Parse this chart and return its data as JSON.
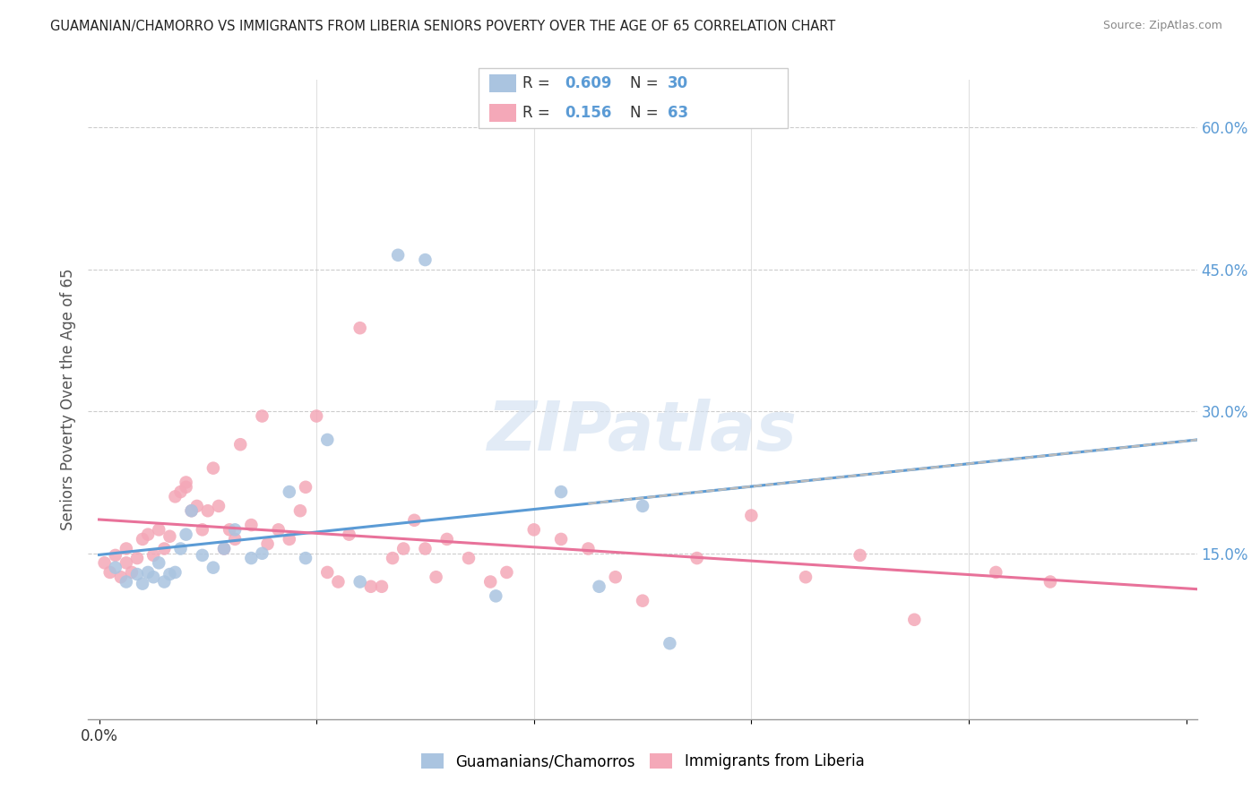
{
  "title": "GUAMANIAN/CHAMORRO VS IMMIGRANTS FROM LIBERIA SENIORS POVERTY OVER THE AGE OF 65 CORRELATION CHART",
  "source": "Source: ZipAtlas.com",
  "ylabel": "Seniors Poverty Over the Age of 65",
  "xlim": [
    -0.002,
    0.202
  ],
  "ylim": [
    -0.025,
    0.65
  ],
  "color1": "#aac4e0",
  "color2": "#f4a8b8",
  "line_color1": "#5b9bd5",
  "line_color2": "#e8729a",
  "dash_color": "#bbbbbb",
  "R1": 0.609,
  "N1": 30,
  "R2": 0.156,
  "N2": 63,
  "legend1_label": "Guamanians/Chamorros",
  "legend2_label": "Immigrants from Liberia",
  "watermark": "ZIPatlas",
  "right_tick_color": "#5b9bd5",
  "blue_scatter_x": [
    0.003,
    0.005,
    0.007,
    0.008,
    0.009,
    0.01,
    0.011,
    0.012,
    0.013,
    0.014,
    0.015,
    0.016,
    0.017,
    0.019,
    0.021,
    0.023,
    0.025,
    0.028,
    0.03,
    0.035,
    0.038,
    0.042,
    0.048,
    0.055,
    0.06,
    0.073,
    0.085,
    0.092,
    0.1,
    0.105
  ],
  "blue_scatter_y": [
    0.135,
    0.12,
    0.128,
    0.118,
    0.13,
    0.125,
    0.14,
    0.12,
    0.128,
    0.13,
    0.155,
    0.17,
    0.195,
    0.148,
    0.135,
    0.155,
    0.175,
    0.145,
    0.15,
    0.215,
    0.145,
    0.27,
    0.12,
    0.465,
    0.46,
    0.105,
    0.215,
    0.115,
    0.2,
    0.055
  ],
  "pink_scatter_x": [
    0.001,
    0.002,
    0.003,
    0.004,
    0.005,
    0.005,
    0.006,
    0.007,
    0.008,
    0.009,
    0.01,
    0.011,
    0.012,
    0.013,
    0.014,
    0.015,
    0.016,
    0.016,
    0.017,
    0.018,
    0.019,
    0.02,
    0.021,
    0.022,
    0.023,
    0.024,
    0.025,
    0.026,
    0.028,
    0.03,
    0.031,
    0.033,
    0.035,
    0.037,
    0.038,
    0.04,
    0.042,
    0.044,
    0.046,
    0.048,
    0.05,
    0.052,
    0.054,
    0.056,
    0.058,
    0.06,
    0.062,
    0.064,
    0.068,
    0.072,
    0.075,
    0.08,
    0.085,
    0.09,
    0.095,
    0.1,
    0.11,
    0.12,
    0.13,
    0.14,
    0.15,
    0.165,
    0.175
  ],
  "pink_scatter_y": [
    0.14,
    0.13,
    0.148,
    0.125,
    0.155,
    0.14,
    0.13,
    0.145,
    0.165,
    0.17,
    0.148,
    0.175,
    0.155,
    0.168,
    0.21,
    0.215,
    0.225,
    0.22,
    0.195,
    0.2,
    0.175,
    0.195,
    0.24,
    0.2,
    0.155,
    0.175,
    0.165,
    0.265,
    0.18,
    0.295,
    0.16,
    0.175,
    0.165,
    0.195,
    0.22,
    0.295,
    0.13,
    0.12,
    0.17,
    0.388,
    0.115,
    0.115,
    0.145,
    0.155,
    0.185,
    0.155,
    0.125,
    0.165,
    0.145,
    0.12,
    0.13,
    0.175,
    0.165,
    0.155,
    0.125,
    0.1,
    0.145,
    0.19,
    0.125,
    0.148,
    0.08,
    0.13,
    0.12
  ]
}
